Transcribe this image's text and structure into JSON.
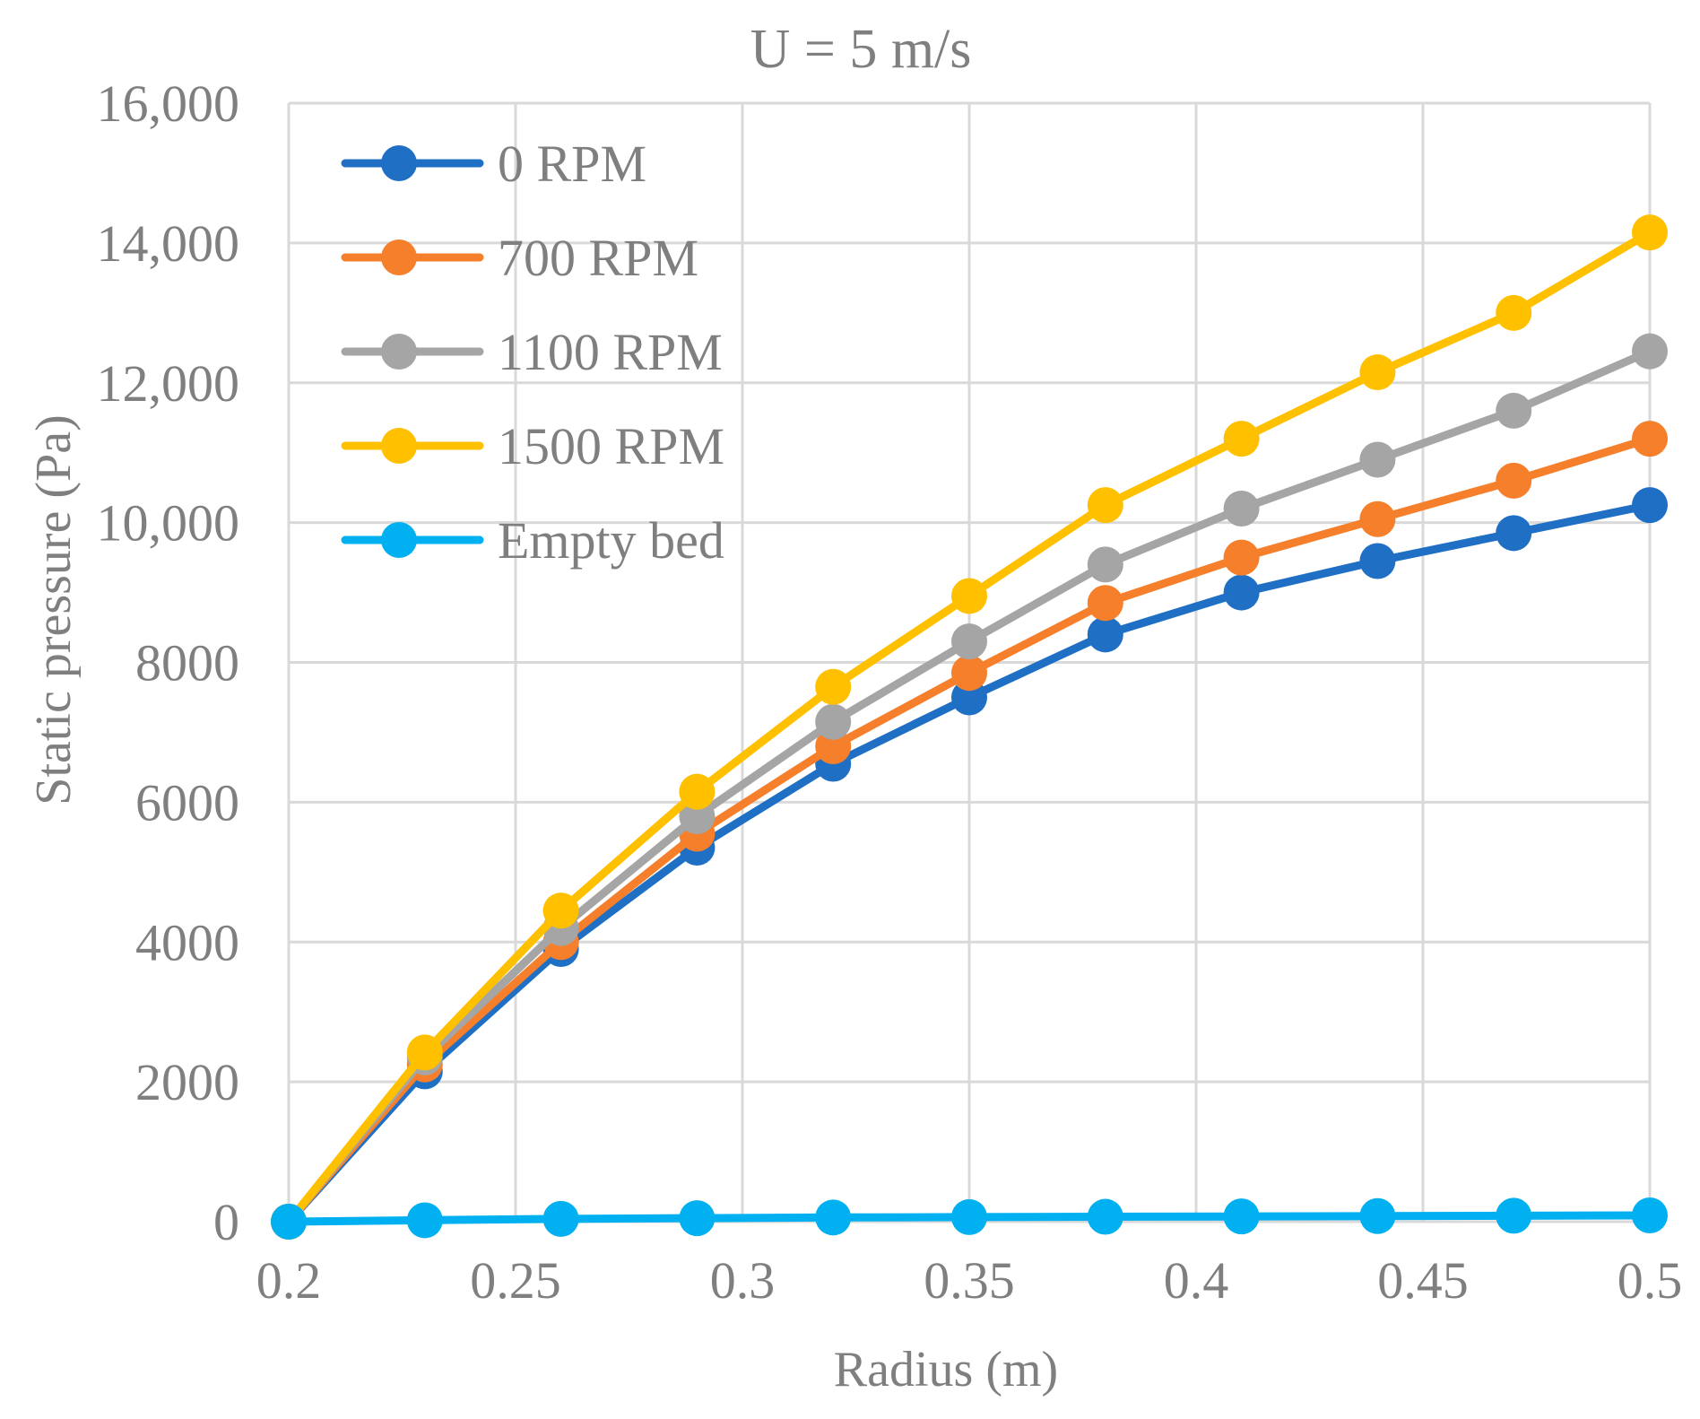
{
  "chart_data": {
    "type": "line",
    "title": "U = 5 m/s",
    "xlabel": "Radius (m)",
    "ylabel": "Static pressure (Pa)",
    "xlim": [
      0.2,
      0.5
    ],
    "ylim": [
      0,
      16000
    ],
    "xticks": [
      0.2,
      0.25,
      0.3,
      0.35,
      0.4,
      0.45,
      0.5
    ],
    "xtick_labels": [
      "0.2",
      "0.25",
      "0.3",
      "0.35",
      "0.4",
      "0.45",
      "0.5"
    ],
    "yticks": [
      0,
      2000,
      4000,
      6000,
      8000,
      10000,
      12000,
      14000,
      16000
    ],
    "ytick_labels": [
      "0",
      "2000",
      "4000",
      "6000",
      "8000",
      "10,000",
      "12,000",
      "14,000",
      "16,000"
    ],
    "grid": true,
    "legend_position": "top-left",
    "x": [
      0.2,
      0.23,
      0.26,
      0.29,
      0.32,
      0.35,
      0.38,
      0.41,
      0.44,
      0.47,
      0.5
    ],
    "series": [
      {
        "name": "0 RPM",
        "color": "#1f6fc5",
        "values": [
          0,
          2150,
          3900,
          5350,
          6550,
          7500,
          8400,
          9000,
          9450,
          9850,
          10250
        ]
      },
      {
        "name": "700 RPM",
        "color": "#f57f2a",
        "values": [
          0,
          2250,
          4000,
          5550,
          6800,
          7850,
          8850,
          9500,
          10050,
          10600,
          11200
        ]
      },
      {
        "name": "1100 RPM",
        "color": "#a5a5a5",
        "values": [
          0,
          2350,
          4200,
          5800,
          7150,
          8300,
          9400,
          10200,
          10900,
          11600,
          12450
        ]
      },
      {
        "name": "1500 RPM",
        "color": "#ffc000",
        "values": [
          0,
          2420,
          4450,
          6150,
          7650,
          8950,
          10250,
          11200,
          12150,
          13000,
          14150
        ]
      },
      {
        "name": "Empty bed",
        "color": "#00b0f0",
        "values": [
          0,
          20,
          40,
          50,
          60,
          65,
          70,
          75,
          80,
          85,
          90
        ]
      }
    ]
  }
}
